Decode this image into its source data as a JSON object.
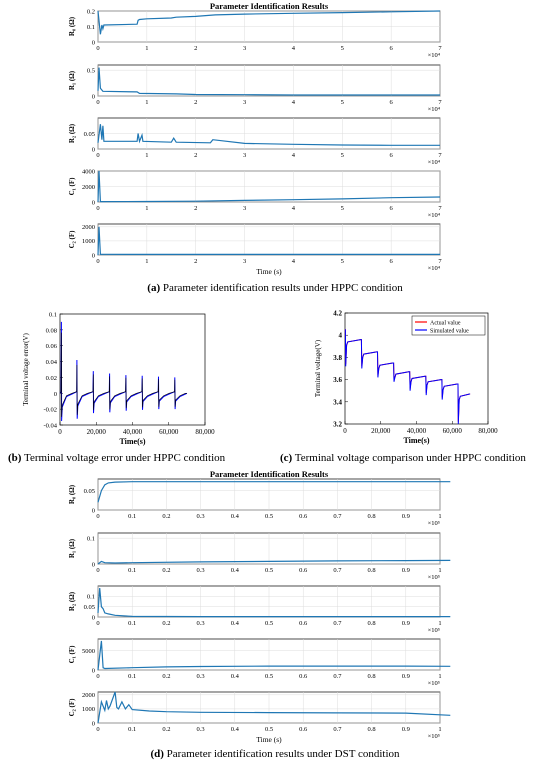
{
  "captions": {
    "a": {
      "letter": "(a)",
      "text": " Parameter identification results under HPPC condition"
    },
    "b": {
      "letter": "(b)",
      "text": " Terminal voltage error under HPPC condition"
    },
    "c": {
      "letter": "(c)",
      "text": " Terminal voltage comparison under HPPC condition"
    },
    "d": {
      "letter": "(d)",
      "text": " Parameter identification results under DST condition"
    }
  },
  "chart_data": [
    {
      "id": "hppc_params",
      "type": "line",
      "title": "Parameter Identification Results",
      "xlabel": "Time (s)",
      "x_exponent": "×10⁴",
      "xticks": [
        0,
        1,
        2,
        3,
        4,
        5,
        6,
        7
      ],
      "color": "#1f77b4",
      "panels": [
        {
          "ylabel": "R₀ (Ω)",
          "ylim": [
            0,
            0.2
          ],
          "yticks": [
            0,
            0.1,
            0.2
          ],
          "x": [
            0,
            0.05,
            0.08,
            0.1,
            0.12,
            0.8,
            0.82,
            0.85,
            1.0,
            1.5,
            1.6,
            2.0,
            2.4,
            3.0,
            4.0,
            5.0,
            6.0,
            7.0
          ],
          "y": [
            0.2,
            0.05,
            0.11,
            0.085,
            0.11,
            0.115,
            0.14,
            0.145,
            0.15,
            0.155,
            0.16,
            0.165,
            0.175,
            0.18,
            0.185,
            0.19,
            0.195,
            0.2
          ]
        },
        {
          "ylabel": "R₁ (Ω)",
          "ylim": [
            0,
            0.6
          ],
          "yticks": [
            0,
            0.5
          ],
          "x": [
            0,
            0.02,
            0.05,
            0.1,
            0.8,
            0.85,
            1.6,
            2.0,
            3.0,
            4.0,
            5.0,
            6.0,
            7.0
          ],
          "y": [
            0.1,
            0.55,
            0.15,
            0.09,
            0.08,
            0.05,
            0.04,
            0.03,
            0.025,
            0.02,
            0.02,
            0.02,
            0.02
          ]
        },
        {
          "ylabel": "R₂ (Ω)",
          "ylim": [
            0,
            0.1
          ],
          "yticks": [
            0,
            0.05
          ],
          "x": [
            0,
            0.05,
            0.08,
            0.1,
            0.12,
            0.8,
            0.82,
            0.85,
            0.9,
            0.92,
            1.5,
            1.55,
            1.6,
            2.3,
            2.35,
            3.0,
            4.0,
            5.0,
            6.0,
            7.0
          ],
          "y": [
            0.02,
            0.08,
            0.03,
            0.075,
            0.025,
            0.025,
            0.05,
            0.025,
            0.045,
            0.025,
            0.022,
            0.035,
            0.022,
            0.02,
            0.03,
            0.018,
            0.015,
            0.013,
            0.012,
            0.012
          ]
        },
        {
          "ylabel": "C₁ (F)",
          "ylim": [
            0,
            4000
          ],
          "yticks": [
            0,
            2000,
            4000
          ],
          "x": [
            0,
            0.02,
            0.05,
            1.0,
            2.0,
            3.0,
            4.0,
            5.0,
            6.0,
            7.0
          ],
          "y": [
            0,
            4000,
            50,
            60,
            100,
            200,
            300,
            400,
            550,
            650
          ]
        },
        {
          "ylabel": "C₂ (F)",
          "ylim": [
            0,
            2200
          ],
          "yticks": [
            0,
            1000,
            2000
          ],
          "x": [
            0,
            0.02,
            0.05,
            1.0,
            2.0,
            3.0,
            4.0,
            5.0,
            6.0,
            7.0
          ],
          "y": [
            0,
            2000,
            50,
            40,
            40,
            40,
            40,
            40,
            40,
            40
          ]
        }
      ]
    },
    {
      "id": "hppc_error",
      "type": "line",
      "title": "",
      "xlabel": "Time(s)",
      "ylabel": "Terminal voltage error(V)",
      "xlim": [
        0,
        80000
      ],
      "xticks": [
        0,
        20000,
        40000,
        60000,
        80000
      ],
      "xtick_labels": [
        "0",
        "20,000",
        "40,000",
        "60,000",
        "80,000"
      ],
      "ylim": [
        -0.04,
        0.1
      ],
      "yticks": [
        -0.04,
        -0.02,
        0,
        0.02,
        0.04,
        0.06,
        0.08,
        0.1
      ],
      "ytick_labels": [
        "-0.04",
        "-0.02",
        "0",
        "0.02",
        "0.04",
        "0.06",
        "0.08",
        "0.1"
      ],
      "pulse_times": [
        600,
        9200,
        18200,
        27200,
        36200,
        45200,
        54200,
        63200
      ],
      "pulse_peaks": [
        0.09,
        0.042,
        0.028,
        0.025,
        0.023,
        0.022,
        0.021,
        0.02
      ],
      "pulse_troughs": [
        -0.035,
        -0.032,
        -0.025,
        -0.024,
        -0.022,
        -0.021,
        -0.02,
        -0.02
      ],
      "end_time": 70000,
      "colors": [
        "#0000ff",
        "#000000"
      ]
    },
    {
      "id": "hppc_voltage",
      "type": "line",
      "title": "",
      "xlabel": "Time(s)",
      "ylabel": "Terminal voltage(V)",
      "xlim": [
        0,
        80000
      ],
      "xticks": [
        0,
        20000,
        40000,
        60000,
        80000
      ],
      "xtick_labels": [
        "0",
        "20,000",
        "40,000",
        "60,000",
        "80,000"
      ],
      "ylim": [
        3.2,
        4.2
      ],
      "yticks": [
        3.2,
        3.4,
        3.6,
        3.8,
        4.0,
        4.2
      ],
      "ytick_labels": [
        "3.2",
        "3.4",
        "3.6",
        "3.8",
        "4",
        "4.2"
      ],
      "legend": [
        "Actual value",
        "Simulated value"
      ],
      "legend_position": "top-right",
      "step_times": [
        0,
        9000,
        18000,
        27000,
        36000,
        45000,
        54000,
        63000,
        70000
      ],
      "rest_levels": [
        4.05,
        3.96,
        3.85,
        3.75,
        3.67,
        3.63,
        3.6,
        3.56,
        3.47
      ],
      "dip_levels": [
        3.72,
        3.7,
        3.62,
        3.58,
        3.5,
        3.46,
        3.42,
        3.2
      ],
      "colors": [
        "#ff0000",
        "#0000ff"
      ]
    },
    {
      "id": "dst_params",
      "type": "line",
      "title": "Parameter Identification Results",
      "xlabel": "Time (s)",
      "x_exponent": "×10⁵",
      "xticks": [
        0,
        0.1,
        0.2,
        0.3,
        0.4,
        0.5,
        0.6,
        0.7,
        0.8,
        0.9,
        1
      ],
      "color": "#1f77b4",
      "panels": [
        {
          "ylabel": "R₀ (Ω)",
          "ylim": [
            0,
            0.08
          ],
          "yticks": [
            0,
            0.05
          ],
          "x": [
            0,
            0.01,
            0.02,
            0.03,
            0.05,
            0.1,
            0.3,
            0.5,
            0.7,
            0.9,
            1.03
          ],
          "y": [
            0.02,
            0.05,
            0.065,
            0.07,
            0.072,
            0.073,
            0.073,
            0.073,
            0.073,
            0.073,
            0.073
          ]
        },
        {
          "ylabel": "R₁ (Ω)",
          "ylim": [
            0,
            0.12
          ],
          "yticks": [
            0,
            0.1
          ],
          "x": [
            0,
            0.01,
            0.02,
            0.05,
            0.1,
            0.3,
            0.5,
            0.7,
            0.9,
            1.03
          ],
          "y": [
            0.0,
            0.01,
            0.005,
            0.004,
            0.005,
            0.008,
            0.01,
            0.012,
            0.013,
            0.014
          ]
        },
        {
          "ylabel": "R₂ (Ω)",
          "ylim": [
            0,
            0.15
          ],
          "yticks": [
            0,
            0.05,
            0.1
          ],
          "x": [
            0,
            0.005,
            0.01,
            0.015,
            0.02,
            0.03,
            0.05,
            0.1,
            0.3,
            0.5,
            0.7,
            0.9,
            1.03
          ],
          "y": [
            0.02,
            0.14,
            0.05,
            0.04,
            0.02,
            0.015,
            0.008,
            0.003,
            0.002,
            0.002,
            0.002,
            0.002,
            0.002
          ]
        },
        {
          "ylabel": "C₁ (F)",
          "ylim": [
            0,
            8000
          ],
          "yticks": [
            0,
            5000
          ],
          "x": [
            0,
            0.01,
            0.015,
            0.02,
            0.1,
            0.2,
            0.3,
            0.5,
            0.7,
            0.9,
            1.03
          ],
          "y": [
            0,
            7500,
            600,
            400,
            600,
            800,
            900,
            1000,
            1000,
            1000,
            950
          ]
        },
        {
          "ylabel": "C₂ (F)",
          "ylim": [
            0,
            2200
          ],
          "yticks": [
            0,
            1000,
            2000
          ],
          "x": [
            0,
            0.01,
            0.02,
            0.025,
            0.03,
            0.035,
            0.05,
            0.055,
            0.06,
            0.07,
            0.08,
            0.09,
            0.1,
            0.15,
            0.2,
            0.3,
            0.5,
            0.7,
            0.9,
            1.03
          ],
          "y": [
            0,
            1500,
            900,
            1600,
            1000,
            1200,
            2200,
            1100,
            1000,
            1500,
            1000,
            1300,
            950,
            850,
            800,
            760,
            740,
            720,
            700,
            550
          ]
        }
      ]
    }
  ]
}
